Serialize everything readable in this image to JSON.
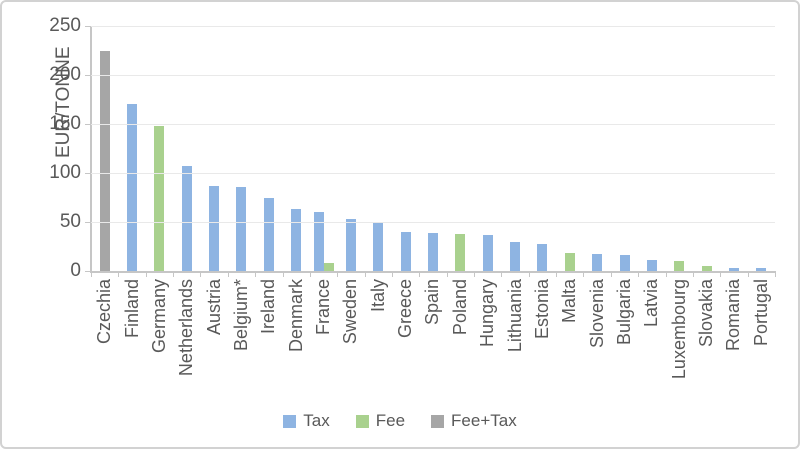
{
  "chart_data": {
    "type": "bar",
    "title": "",
    "xlabel": "",
    "ylabel": "EUR/TONNE",
    "ylim": [
      0,
      250
    ],
    "yticks": [
      0,
      50,
      100,
      150,
      200,
      250
    ],
    "grid": "horizontal",
    "legend_position": "bottom-center",
    "series_colors": {
      "Tax": "#8EB4E2",
      "Fee": "#A9D18E",
      "Fee+Tax": "#A6A6A6"
    },
    "legend": [
      {
        "label": "Tax",
        "color": "#8EB4E2"
      },
      {
        "label": "Fee",
        "color": "#A9D18E"
      },
      {
        "label": "Fee+Tax",
        "color": "#A6A6A6"
      }
    ],
    "categories": [
      "Czechia",
      "Finland",
      "Germany",
      "Netherlands",
      "Austria",
      "Belgium*",
      "Ireland",
      "Denmark",
      "France",
      "Sweden",
      "Italy",
      "Greece",
      "Spain",
      "Poland",
      "Hungary",
      "Lithuania",
      "Estonia",
      "Malta",
      "Slovenia",
      "Bulgaria",
      "Latvia",
      "Luxembourg",
      "Slovakia",
      "Romania",
      "Portugal"
    ],
    "points": [
      {
        "label": "Czechia",
        "bars": [
          {
            "series": "Fee+Tax",
            "value": 225
          }
        ]
      },
      {
        "label": "Finland",
        "bars": [
          {
            "series": "Tax",
            "value": 170
          }
        ]
      },
      {
        "label": "Germany",
        "bars": [
          {
            "series": "Fee",
            "value": 148
          }
        ]
      },
      {
        "label": "Netherlands",
        "bars": [
          {
            "series": "Tax",
            "value": 107
          }
        ]
      },
      {
        "label": "Austria",
        "bars": [
          {
            "series": "Tax",
            "value": 87
          }
        ]
      },
      {
        "label": "Belgium*",
        "bars": [
          {
            "series": "Tax",
            "value": 86
          }
        ]
      },
      {
        "label": "Ireland",
        "bars": [
          {
            "series": "Tax",
            "value": 75
          }
        ]
      },
      {
        "label": "Denmark",
        "bars": [
          {
            "series": "Tax",
            "value": 63
          }
        ]
      },
      {
        "label": "France",
        "bars": [
          {
            "series": "Tax",
            "value": 60
          },
          {
            "series": "Fee",
            "value": 8
          }
        ]
      },
      {
        "label": "Sweden",
        "bars": [
          {
            "series": "Tax",
            "value": 53
          }
        ]
      },
      {
        "label": "Italy",
        "bars": [
          {
            "series": "Tax",
            "value": 50
          }
        ]
      },
      {
        "label": "Greece",
        "bars": [
          {
            "series": "Tax",
            "value": 40
          }
        ]
      },
      {
        "label": "Spain",
        "bars": [
          {
            "series": "Tax",
            "value": 39
          }
        ]
      },
      {
        "label": "Poland",
        "bars": [
          {
            "series": "Fee",
            "value": 38
          }
        ]
      },
      {
        "label": "Hungary",
        "bars": [
          {
            "series": "Tax",
            "value": 37
          }
        ]
      },
      {
        "label": "Lithuania",
        "bars": [
          {
            "series": "Tax",
            "value": 30
          }
        ]
      },
      {
        "label": "Estonia",
        "bars": [
          {
            "series": "Tax",
            "value": 28
          }
        ]
      },
      {
        "label": "Malta",
        "bars": [
          {
            "series": "Fee",
            "value": 18
          }
        ]
      },
      {
        "label": "Slovenia",
        "bars": [
          {
            "series": "Tax",
            "value": 17
          }
        ]
      },
      {
        "label": "Bulgaria",
        "bars": [
          {
            "series": "Tax",
            "value": 16
          }
        ]
      },
      {
        "label": "Latvia",
        "bars": [
          {
            "series": "Tax",
            "value": 11
          }
        ]
      },
      {
        "label": "Luxembourg",
        "bars": [
          {
            "series": "Fee",
            "value": 10
          }
        ]
      },
      {
        "label": "Slovakia",
        "bars": [
          {
            "series": "Fee",
            "value": 5
          }
        ]
      },
      {
        "label": "Romania",
        "bars": [
          {
            "series": "Tax",
            "value": 3
          }
        ]
      },
      {
        "label": "Portugal",
        "bars": [
          {
            "series": "Tax",
            "value": 3
          }
        ]
      }
    ]
  }
}
